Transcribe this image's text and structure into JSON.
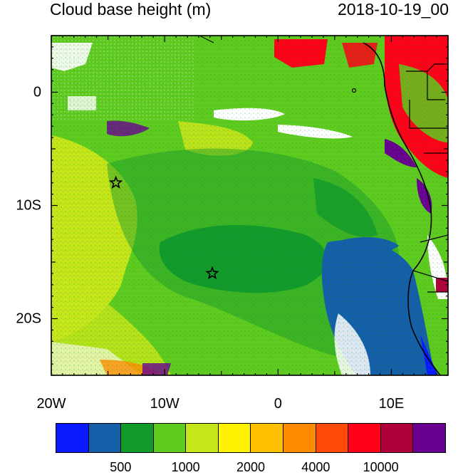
{
  "header": {
    "variable_title": "Cloud base height (m)",
    "time_label": "2018-10-19_00"
  },
  "map": {
    "projection": "lat-lon",
    "lon_range": [
      -20,
      15
    ],
    "lat_range": [
      -25,
      5
    ],
    "x_tick_labels": [
      {
        "lon": -20,
        "label": "20W"
      },
      {
        "lon": -10,
        "label": "10W"
      },
      {
        "lon": 0,
        "label": "0"
      },
      {
        "lon": 10,
        "label": "10E"
      }
    ],
    "y_tick_labels": [
      {
        "lat": 0,
        "label": "0"
      },
      {
        "lat": -10,
        "label": "10S"
      },
      {
        "lat": -20,
        "label": "20S"
      }
    ],
    "markers": [
      {
        "name": "star-marker-1",
        "lon": -14.3,
        "lat": -8.0,
        "symbol": "star"
      },
      {
        "name": "star-marker-2",
        "lon": -5.8,
        "lat": -16.0,
        "symbol": "star"
      }
    ],
    "coastline_color": "#000000"
  },
  "colorbar": {
    "colors": [
      "#0a1aff",
      "#145fa8",
      "#129a2a",
      "#5fcb1e",
      "#c6e61a",
      "#fff200",
      "#ffc000",
      "#ff8c00",
      "#ff4a0a",
      "#ff0018",
      "#b0003a",
      "#6a0090"
    ],
    "labels": [
      {
        "boundary": 2,
        "text": "500"
      },
      {
        "boundary": 4,
        "text": "1000"
      },
      {
        "boundary": 6,
        "text": "2000"
      },
      {
        "boundary": 8,
        "text": "4000"
      },
      {
        "boundary": 10,
        "text": "10000"
      }
    ]
  }
}
